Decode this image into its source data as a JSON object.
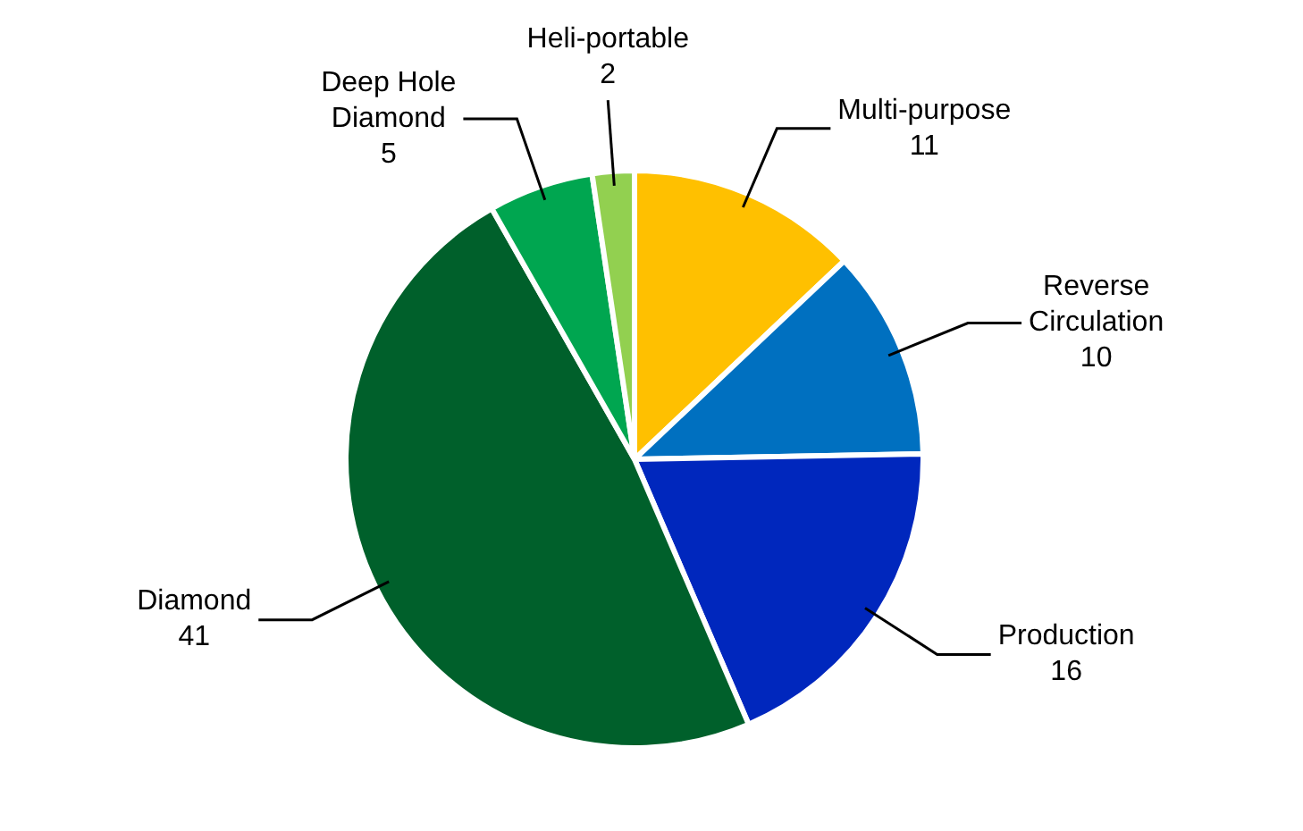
{
  "chart_data": {
    "type": "pie",
    "categories": [
      "Multi-purpose",
      "Reverse Circulation",
      "Production",
      "Diamond",
      "Deep Hole Diamond",
      "Heli-portable"
    ],
    "values": [
      11,
      10,
      16,
      41,
      5,
      2
    ],
    "colors": [
      "#ffc000",
      "#0070c0",
      "#0027bd",
      "#00602b",
      "#00a650",
      "#92d050"
    ],
    "data_labels": true,
    "legend": false
  }
}
